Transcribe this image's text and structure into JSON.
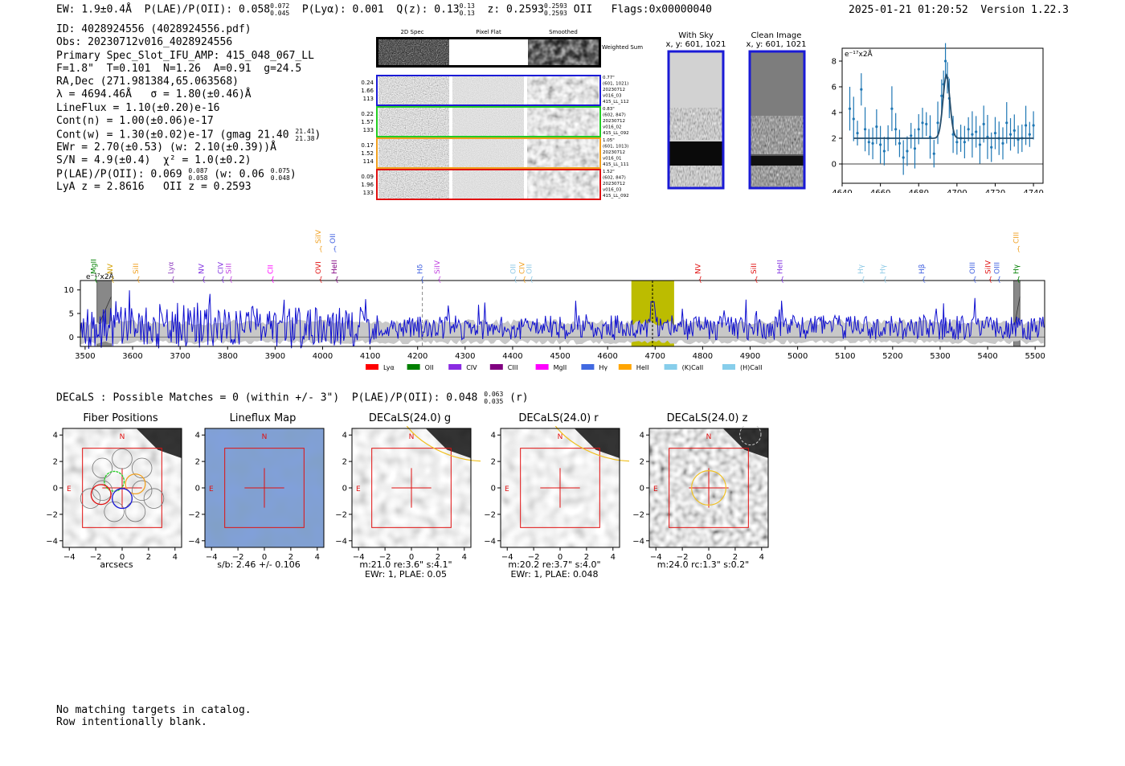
{
  "header": {
    "ew_label": "EW:",
    "ew_value": "1.9±0.4Å",
    "plae_label": "P(LAE)/P(OII):",
    "plae_value": "0.058",
    "plae_hi": "0.072",
    "plae_lo": "0.045",
    "plya_label": "P(Lyα):",
    "plya_value": "0.001",
    "qz_label": "Q(z):",
    "qz_value": "0.13",
    "qz_hi": "0.13",
    "qz_lo": "0.13",
    "z_label": "z:",
    "z_value": "0.2593",
    "z_hi": "0.2593",
    "z_lo": "0.2593",
    "z_line": "OII",
    "flags": "Flags:0x00000040",
    "timestamp": "2025-01-21 01:20:52",
    "version": "Version 1.22.3"
  },
  "info": {
    "id": "ID: 4028924556 (4028924556.pdf)",
    "obs": "Obs: 20230712v016_4028924556",
    "primary": "Primary Spec_Slot_IFU_AMP: 415_048_067_LL",
    "seeing": "F=1.8\"  T=0.101  N=1.26  A=0.91  g=24.5",
    "radec": "RA,Dec (271.981384,65.063568)",
    "lambda": "λ = 4694.46Å   σ = 1.80(±0.46)Å",
    "lineflux": "LineFlux = 1.10(±0.20)e-16",
    "cont_n": "Cont(n) = 1.00(±0.06)e-17",
    "cont_w": "Cont(w) = 1.30(±0.02)e-17 (gmag 21.40",
    "cont_w_hi": "21.41",
    "cont_w_lo": "21.38",
    "ewr": "EWr = 2.70(±0.53) (w: 2.10(±0.39))Å",
    "sn": "S/N = 4.9(±0.4)  χ² = 1.0(±0.2)",
    "plae": "P(LAE)/P(OII): 0.069",
    "plae_hi": "0.087",
    "plae_lo": "0.058",
    "plae_w": "(w: 0.06",
    "plae_w_hi": "0.075",
    "plae_w_lo": "0.048",
    "lya_z": "LyA z = 2.8616   OII z = 0.2593"
  },
  "cutouts": {
    "headers": [
      "2D Spec",
      "Pixel Flat",
      "Smoothed"
    ],
    "weighted_sum": "Weighted Sum",
    "rows": [
      {
        "left": [
          "0.24",
          "1.66",
          "113"
        ],
        "right": [
          "0.77\"",
          "(601, 1021)",
          "20230712",
          "v016_03",
          "415_LL_112"
        ],
        "color": "#1a1ad6"
      },
      {
        "left": [
          "0.22",
          "1.57",
          "133"
        ],
        "right": [
          "0.83\"",
          "(602, 847)",
          "20230712",
          "v016_02",
          "415_LL_092"
        ],
        "color": "#22cc22"
      },
      {
        "left": [
          "0.17",
          "1.52",
          "114"
        ],
        "right": [
          "1.05\"",
          "(601, 1013)",
          "20230712",
          "v016_01",
          "415_LL_111"
        ],
        "color": "#f0a020"
      },
      {
        "left": [
          "0.09",
          "1.96",
          "133"
        ],
        "right": [
          "1.52\"",
          "(602, 847)",
          "20230712",
          "v016_03",
          "415_LL_092"
        ],
        "color": "#e01010"
      }
    ],
    "with_sky_title": "With Sky",
    "with_sky_xy": "x, y: 601, 1021",
    "clean_title": "Clean Image",
    "clean_xy": "x, y: 601, 1021"
  },
  "chart_data": [
    {
      "type": "scatter",
      "title": "",
      "ylabel": "e⁻¹⁷x2Å",
      "xlim": [
        4640,
        4745
      ],
      "ylim": [
        -1.5,
        9.0
      ],
      "xticks": [
        4640,
        4660,
        4680,
        4700,
        4720,
        4740
      ],
      "yticks": [
        0,
        2,
        4,
        6,
        8
      ],
      "points": [
        [
          4644,
          4.3
        ],
        [
          4646,
          3.5
        ],
        [
          4648,
          2.4
        ],
        [
          4650,
          5.8
        ],
        [
          4652,
          2.7
        ],
        [
          4654,
          1.7
        ],
        [
          4656,
          1.6
        ],
        [
          4658,
          2.9
        ],
        [
          4660,
          1.5
        ],
        [
          4662,
          1.0
        ],
        [
          4664,
          2.0
        ],
        [
          4666,
          4.3
        ],
        [
          4668,
          2.7
        ],
        [
          4670,
          1.6
        ],
        [
          4672,
          0.5
        ],
        [
          4674,
          1.0
        ],
        [
          4676,
          2.2
        ],
        [
          4678,
          1.2
        ],
        [
          4680,
          2.7
        ],
        [
          4682,
          3.2
        ],
        [
          4684,
          3.1
        ],
        [
          4686,
          2.1
        ],
        [
          4688,
          0.8
        ],
        [
          4690,
          3.2
        ],
        [
          4692,
          5.3
        ],
        [
          4693,
          6.2
        ],
        [
          4694,
          8.0
        ],
        [
          4695,
          6.7
        ],
        [
          4696,
          5.1
        ],
        [
          4698,
          2.3
        ],
        [
          4700,
          1.7
        ],
        [
          4702,
          2.0
        ],
        [
          4704,
          1.7
        ],
        [
          4706,
          2.7
        ],
        [
          4708,
          2.3
        ],
        [
          4710,
          2.5
        ],
        [
          4712,
          1.5
        ],
        [
          4714,
          3.1
        ],
        [
          4716,
          2.1
        ],
        [
          4718,
          1.3
        ],
        [
          4720,
          2.4
        ],
        [
          4722,
          2.0
        ],
        [
          4724,
          1.6
        ],
        [
          4726,
          3.2
        ],
        [
          4728,
          2.3
        ],
        [
          4730,
          2.6
        ],
        [
          4732,
          1.9
        ],
        [
          4734,
          2.0
        ],
        [
          4736,
          3.0
        ],
        [
          4738,
          2.3
        ],
        [
          4740,
          3.0
        ]
      ],
      "model": {
        "continuum": 2.0,
        "peak": 6.9,
        "center": 4694.5,
        "sigma": 1.8
      }
    },
    {
      "type": "line",
      "title": "",
      "ylabel": "e⁻¹⁷x2Å",
      "xlim": [
        3490,
        5520
      ],
      "ylim": [
        -2,
        12
      ],
      "xticks": [
        3500,
        3600,
        3700,
        3800,
        3900,
        4000,
        4100,
        4200,
        4300,
        4400,
        4500,
        4600,
        4700,
        4800,
        4900,
        5000,
        5100,
        5200,
        5300,
        5400,
        5500
      ],
      "yticks": [
        0,
        5,
        10
      ],
      "highlight": [
        4650,
        4740
      ],
      "line_marker": 4694.46,
      "dashed_marker": 4210,
      "hatched": [
        [
          3525,
          3555
        ],
        [
          5455,
          5468
        ]
      ],
      "line_labels": [
        {
          "label": "MgII",
          "x": 3523,
          "color": "#008000",
          "row": 0
        },
        {
          "label": "NV",
          "x": 3558,
          "color": "#d4a000",
          "row": 0
        },
        {
          "label": "SiII",
          "x": 3612,
          "color": "#f0a020",
          "row": 0
        },
        {
          "label": "Lyα",
          "x": 3685,
          "color": "#9040c0",
          "row": 0
        },
        {
          "label": "NV",
          "x": 3750,
          "color": "#8030e0",
          "row": 0
        },
        {
          "label": "CIV",
          "x": 3790,
          "color": "#8030e0",
          "row": 0
        },
        {
          "label": "SiII",
          "x": 3807,
          "color": "#c040e0",
          "row": 0
        },
        {
          "label": "CII",
          "x": 3895,
          "color": "#ff00ff",
          "row": 0
        },
        {
          "label": "SiIV",
          "x": 3996,
          "color": "#f0a020",
          "row": 1
        },
        {
          "label": "OVI",
          "x": 3996,
          "color": "#e01010",
          "row": 0
        },
        {
          "label": "OII",
          "x": 4026,
          "color": "#4060e0",
          "row": 1
        },
        {
          "label": "HeII",
          "x": 4030,
          "color": "#800080",
          "row": 0
        },
        {
          "label": "Hδ",
          "x": 4210,
          "color": "#4060e0",
          "row": 0
        },
        {
          "label": "SiIV",
          "x": 4246,
          "color": "#c040e0",
          "row": 0
        },
        {
          "label": "OII",
          "x": 4406,
          "color": "#8ecae6",
          "row": 0
        },
        {
          "label": "CIV",
          "x": 4425,
          "color": "#f0a020",
          "row": 0
        },
        {
          "label": "OII",
          "x": 4440,
          "color": "#8ecae6",
          "row": 0
        },
        {
          "label": "NV",
          "x": 4795,
          "color": "#e01010",
          "row": 0
        },
        {
          "label": "SiII",
          "x": 4913,
          "color": "#e01010",
          "row": 0
        },
        {
          "label": "HeII",
          "x": 4968,
          "color": "#8030e0",
          "row": 0
        },
        {
          "label": "Hγ",
          "x": 5138,
          "color": "#8ecae6",
          "row": 0
        },
        {
          "label": "Hγ",
          "x": 5184,
          "color": "#8ecae6",
          "row": 0
        },
        {
          "label": "Hβ",
          "x": 5266,
          "color": "#4060e0",
          "row": 0
        },
        {
          "label": "OIII",
          "x": 5373,
          "color": "#4060e0",
          "row": 0
        },
        {
          "label": "SiIV",
          "x": 5406,
          "color": "#e01010",
          "row": 0
        },
        {
          "label": "OIII",
          "x": 5424,
          "color": "#4060e0",
          "row": 0
        },
        {
          "label": "CIII",
          "x": 5465,
          "color": "#f0a020",
          "row": 1
        },
        {
          "label": "Hγ",
          "x": 5465,
          "color": "#008000",
          "row": 0
        }
      ],
      "legend": [
        {
          "label": "Lyα",
          "color": "#ff0000"
        },
        {
          "label": "OII",
          "color": "#008000"
        },
        {
          "label": "CIV",
          "color": "#8a2be2"
        },
        {
          "label": "CIII",
          "color": "#800080"
        },
        {
          "label": "MgII",
          "color": "#ff00ff"
        },
        {
          "label": "Hγ",
          "color": "#4169e1"
        },
        {
          "label": "HeII",
          "color": "#ffa500"
        },
        {
          "label": "(K)CaII",
          "color": "#87ceeb"
        },
        {
          "label": "(H)CaII",
          "color": "#87ceeb"
        }
      ]
    }
  ],
  "decals": {
    "line": "DECaLS : Possible Matches = 0 (within +/- 3\")  P(LAE)/P(OII): 0.048",
    "plae_hi": "0.063",
    "plae_lo": "0.035",
    "band": "(r)"
  },
  "cutout_panels": [
    {
      "title": "Fiber Positions",
      "caption": [
        "arcsecs"
      ]
    },
    {
      "title": "Lineflux Map",
      "caption": [
        "s/b: 2.46 +/- 0.106"
      ]
    },
    {
      "title": "DECaLS(24.0) g",
      "caption": [
        "m:21.0  re:3.6\"  s:4.1\"",
        "EWr: 1, PLAE: 0.05"
      ]
    },
    {
      "title": "DECaLS(24.0) r",
      "caption": [
        "m:20.2  re:3.7\"  s:4.0\"",
        "EWr: 1, PLAE: 0.048"
      ]
    },
    {
      "title": "DECaLS(24.0) z",
      "caption": [
        "m:24.0 rc:1.3\"  s:0.2\""
      ]
    }
  ],
  "axis_ticks": [
    "−4",
    "−2",
    "0",
    "2",
    "4"
  ],
  "compass": {
    "north": "N",
    "east": "E"
  },
  "footer": [
    "No matching targets in catalog.",
    "Row intentionally blank."
  ]
}
